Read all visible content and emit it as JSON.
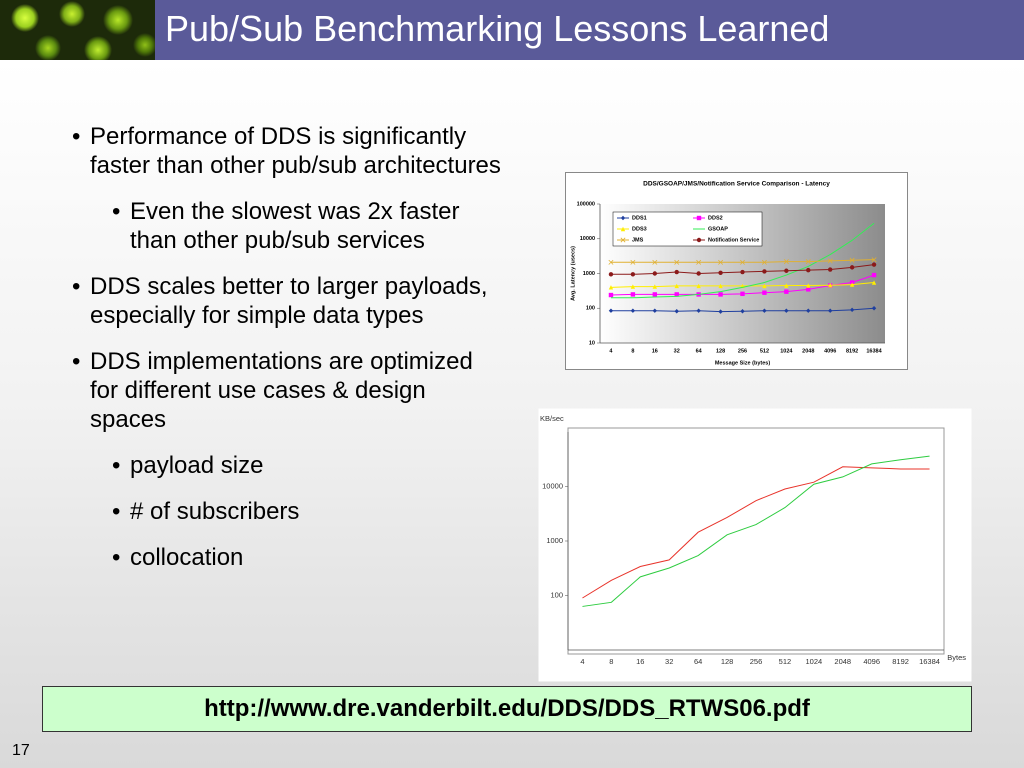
{
  "header": {
    "title": "Pub/Sub Benchmarking Lessons Learned"
  },
  "bullets": [
    {
      "text": "Performance of DDS is significantly faster than other pub/sub architectures",
      "sub": [
        "Even the slowest was 2x faster than other pub/sub services"
      ]
    },
    {
      "text": "DDS scales better to larger payloads, especially for simple data types",
      "sub": []
    },
    {
      "text": "DDS implementations are optimized for different use cases & design spaces",
      "sub": [
        "payload size",
        "# of subscribers",
        "collocation"
      ]
    }
  ],
  "chart_data": [
    {
      "type": "line",
      "title": "DDS/GSOAP/JMS/Notification Service Comparison - Latency",
      "x_label": "Message Size (bytes)",
      "y_label": "Avg. Latency (usecs)",
      "categories": [
        4,
        8,
        16,
        32,
        64,
        128,
        256,
        512,
        1024,
        2048,
        4096,
        8192,
        16384
      ],
      "log_scale": true,
      "ylim": [
        10,
        100000
      ],
      "yticks": [
        10,
        100,
        1000,
        10000,
        100000
      ],
      "grid": false,
      "legend": "top-left",
      "series": [
        {
          "name": "DDS1",
          "color": "#1f3f9f",
          "marker": "diamond",
          "values": [
            85,
            85,
            85,
            82,
            85,
            80,
            82,
            85,
            85,
            85,
            85,
            90,
            100
          ]
        },
        {
          "name": "DDS2",
          "color": "#ff00ff",
          "marker": "square",
          "values": [
            240,
            250,
            250,
            250,
            250,
            250,
            260,
            280,
            300,
            350,
            450,
            550,
            900
          ]
        },
        {
          "name": "DDS3",
          "color": "#ffee00",
          "marker": "triangle",
          "values": [
            400,
            420,
            420,
            440,
            440,
            440,
            440,
            440,
            450,
            450,
            460,
            480,
            550
          ]
        },
        {
          "name": "GSOAP",
          "color": "#33ee55",
          "marker": "none",
          "values": [
            200,
            200,
            210,
            220,
            250,
            300,
            400,
            550,
            900,
            1600,
            3500,
            9000,
            28000
          ]
        },
        {
          "name": "JMS",
          "color": "#e0b030",
          "marker": "x",
          "values": [
            2100,
            2100,
            2100,
            2100,
            2100,
            2100,
            2100,
            2100,
            2200,
            2200,
            2300,
            2400,
            2500
          ]
        },
        {
          "name": "Notification Service",
          "color": "#8b1a1a",
          "marker": "circle",
          "values": [
            950,
            950,
            1000,
            1100,
            1000,
            1050,
            1100,
            1150,
            1200,
            1250,
            1300,
            1500,
            1800
          ]
        }
      ]
    },
    {
      "type": "line",
      "x_label": "Bytes",
      "y_label": "KB/sec",
      "categories": [
        4,
        8,
        16,
        32,
        64,
        128,
        256,
        512,
        1024,
        2048,
        4096,
        8192,
        16384
      ],
      "log_scale": true,
      "ylim": [
        10,
        100000
      ],
      "yticks": [
        100,
        1000,
        10000
      ],
      "grid": false,
      "series": [
        {
          "color": "#e8332a",
          "marker": "none",
          "values": [
            90,
            190,
            340,
            450,
            1450,
            2700,
            5500,
            9000,
            12000,
            23000,
            22000,
            21000,
            21000
          ]
        },
        {
          "color": "#2ecc40",
          "marker": "none",
          "values": [
            63,
            75,
            220,
            320,
            540,
            1300,
            2000,
            4100,
            11000,
            15000,
            26000,
            31000,
            36000
          ]
        }
      ]
    }
  ],
  "link": "http://www.dre.vanderbilt.edu/DDS/DDS_RTWS06.pdf",
  "page_number": "17"
}
